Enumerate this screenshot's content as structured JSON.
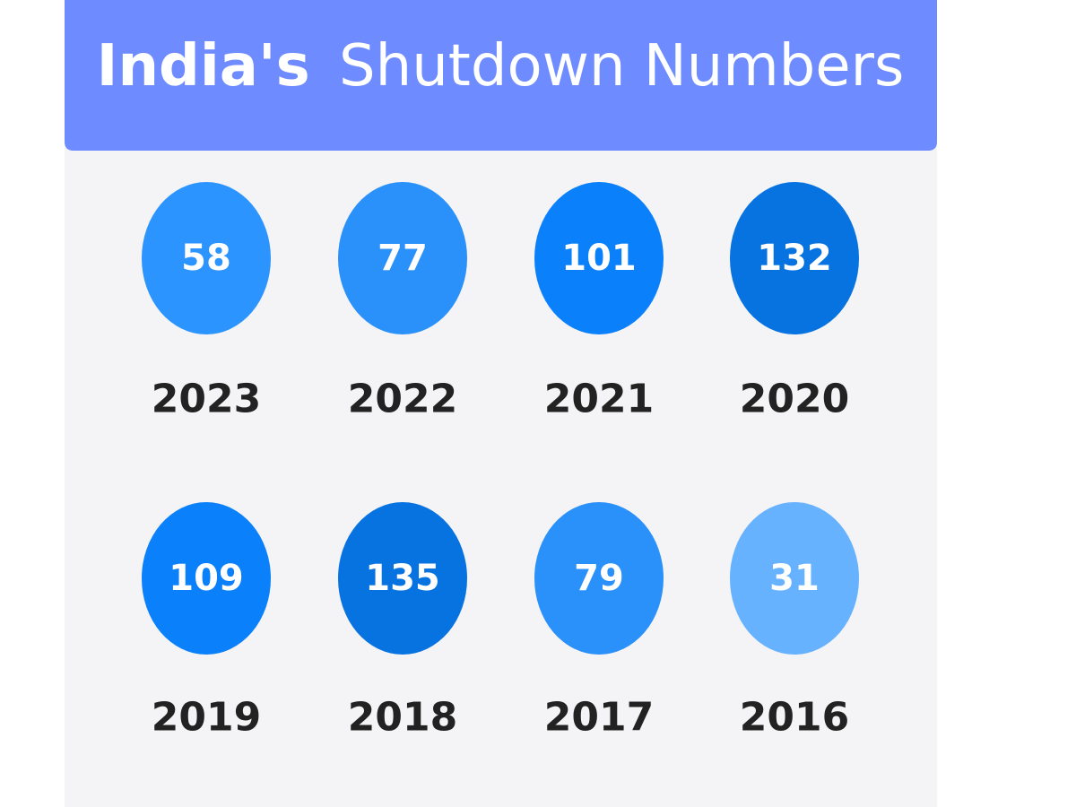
{
  "header": {
    "title_bold": "India's",
    "title_rest": "Shutdown Numbers"
  },
  "items": [
    {
      "value": "58",
      "year": "2023",
      "color": "#2b94ff"
    },
    {
      "value": "77",
      "year": "2022",
      "color": "#2a90fa"
    },
    {
      "value": "101",
      "year": "2021",
      "color": "#0a80fb"
    },
    {
      "value": "132",
      "year": "2020",
      "color": "#0773e0"
    },
    {
      "value": "109",
      "year": "2019",
      "color": "#0a80fb"
    },
    {
      "value": "135",
      "year": "2018",
      "color": "#0773e0"
    },
    {
      "value": "79",
      "year": "2017",
      "color": "#2a90fa"
    },
    {
      "value": "31",
      "year": "2016",
      "color": "#66b2ff"
    }
  ]
}
